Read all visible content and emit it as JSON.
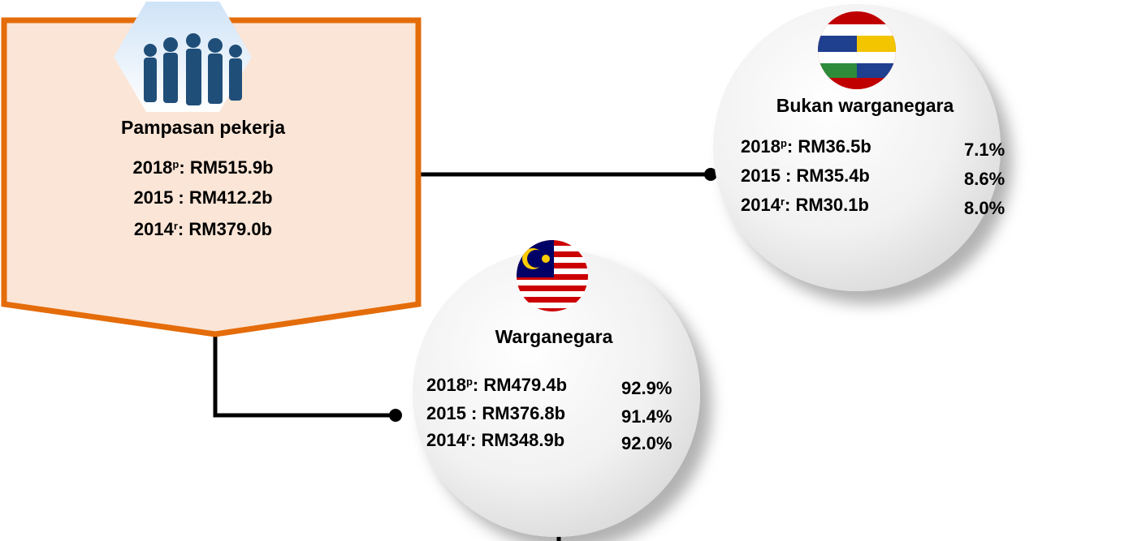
{
  "nodes": [
    {
      "title": "Pampasan pekerja",
      "rows": [
        {
          "year": "2018",
          "sup": "p",
          "value": ": RM515.9b"
        },
        {
          "year": "2015",
          "value": ": RM412.2b"
        },
        {
          "year": "2014",
          "sup": "r",
          "value": ": RM379.0b"
        }
      ]
    },
    {
      "title": "Bukan warganegara",
      "rows": [
        {
          "year": "2018",
          "sup": "p",
          "value": ": RM36.5b",
          "share": "7.1%"
        },
        {
          "year": "2015",
          "value": ": RM35.4b",
          "share": "8.6%"
        },
        {
          "year": "2014",
          "sup": "r",
          "value": ": RM30.1b",
          "share": "8.0%"
        }
      ]
    },
    {
      "title": "Warganegara",
      "rows": [
        {
          "year": "2018",
          "sup": "p",
          "value": ": RM479.4b",
          "share": "92.9%"
        },
        {
          "year": "2015",
          "value": ": RM376.8b",
          "share": "91.4%"
        },
        {
          "year": "2014",
          "sup": "r",
          "value": ": RM348.9b",
          "share": "92.0%"
        }
      ]
    }
  ]
}
